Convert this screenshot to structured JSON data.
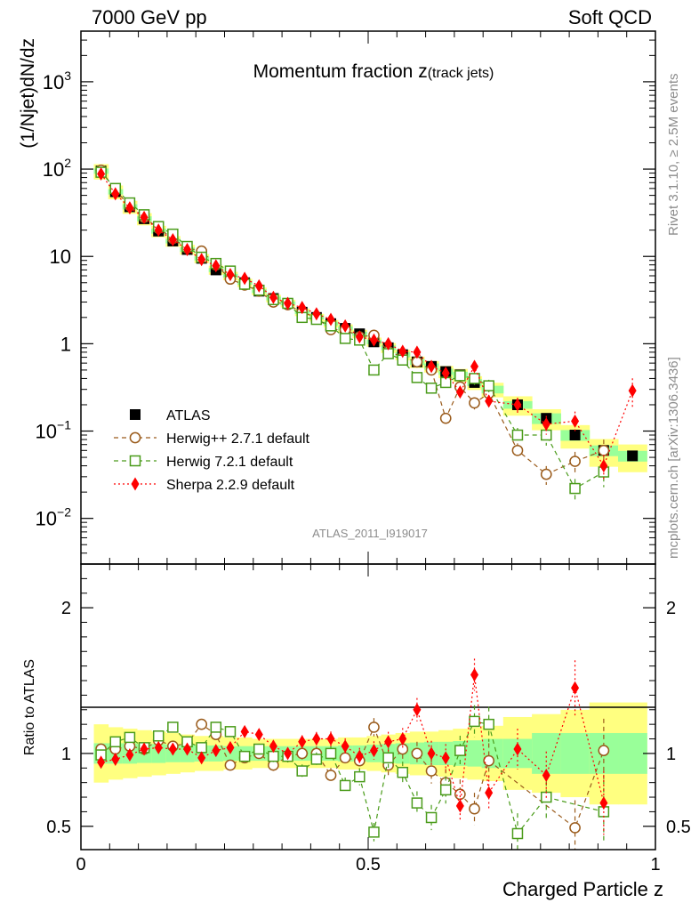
{
  "header": {
    "left": "7000 GeV pp",
    "right": "Soft QCD"
  },
  "side_labels": {
    "rivet": "Rivet 3.1.10, ≥ 2.5M events",
    "mcplots": "mcplots.cern.ch [arXiv:1306.3436]"
  },
  "analysis_id": "ATLAS_2011_I919017",
  "chart_data": [
    {
      "panel": "main",
      "type": "scatter",
      "title": "Momentum fraction z",
      "title_sub": "(track jets)",
      "ylabel": "(1/Njet)dN/dz",
      "ylog": true,
      "xlim": [
        0,
        1
      ],
      "ylim": [
        0.003,
        3800
      ],
      "yticks": [
        {
          "v": 0.01,
          "m": "10",
          "e": "−2"
        },
        {
          "v": 0.1,
          "m": "10",
          "e": "−1"
        },
        {
          "v": 1,
          "m": "1",
          "e": ""
        },
        {
          "v": 10,
          "m": "10",
          "e": ""
        },
        {
          "v": 100,
          "m": "10",
          "e": "2"
        },
        {
          "v": 1000,
          "m": "10",
          "e": "3"
        }
      ],
      "legend": [
        "ATLAS",
        "Herwig++ 2.7.1 default",
        "Herwig 7.2.1 default",
        "Sherpa 2.2.9 default"
      ],
      "legend_position": "bottom-left",
      "x": [
        0.035,
        0.06,
        0.085,
        0.11,
        0.135,
        0.16,
        0.185,
        0.21,
        0.235,
        0.26,
        0.285,
        0.31,
        0.335,
        0.36,
        0.385,
        0.41,
        0.435,
        0.46,
        0.485,
        0.51,
        0.535,
        0.56,
        0.585,
        0.61,
        0.635,
        0.66,
        0.685,
        0.71,
        0.76,
        0.81,
        0.86,
        0.91,
        0.96
      ],
      "series": [
        {
          "name": "ATLAS",
          "color": "#000000",
          "values": [
            95,
            55,
            37,
            27,
            19.5,
            15,
            12,
            9.5,
            7,
            6,
            5,
            4,
            3.3,
            2.9,
            2.3,
            2.0,
            1.7,
            1.5,
            1.3,
            1.05,
            0.9,
            0.75,
            0.62,
            0.55,
            0.48,
            0.44,
            0.36,
            0.3,
            0.2,
            0.14,
            0.09,
            0.06,
            0.052
          ]
        },
        {
          "name": "Herwig++ 2.7.1 default",
          "color": "#9a5b1b",
          "values": [
            97,
            57,
            38,
            28,
            21,
            16,
            12.5,
            11.5,
            8,
            5.5,
            4.7,
            4.0,
            3.0,
            2.8,
            2.3,
            2.0,
            1.45,
            1.45,
            1.2,
            1.25,
            0.82,
            0.7,
            0.62,
            0.5,
            0.14,
            0.32,
            0.21,
            0.27,
            0.06,
            0.032,
            0.045,
            0.06,
            null
          ]
        },
        {
          "name": "Herwig 7.2.1 default",
          "color": "#4a9b1a",
          "values": [
            92,
            60,
            41,
            30,
            22,
            18,
            13,
            9.8,
            8.3,
            6.8,
            4.8,
            4.1,
            3.2,
            2.9,
            2.0,
            1.9,
            1.6,
            1.15,
            1.1,
            0.5,
            0.77,
            0.65,
            0.41,
            0.31,
            0.36,
            0.43,
            0.4,
            0.33,
            0.09,
            0.09,
            0.022,
            0.034,
            null
          ]
        },
        {
          "name": "Sherpa 2.2.9 default",
          "color": "#ff0000",
          "values": [
            88,
            52,
            36,
            28,
            20,
            15.5,
            12,
            9.2,
            7.8,
            6.2,
            5.6,
            4.6,
            3.4,
            2.9,
            2.6,
            2.2,
            1.9,
            1.6,
            1.2,
            1.1,
            1.0,
            0.82,
            0.8,
            0.55,
            0.46,
            0.28,
            0.55,
            0.22,
            0.2,
            0.12,
            0.13,
            0.04,
            0.29
          ]
        }
      ]
    },
    {
      "panel": "ratio",
      "type": "scatter",
      "xlabel": "Charged Particle z",
      "ylabel": "Ratio to ATLAS",
      "xlim": [
        0,
        1
      ],
      "ylim": [
        0.34,
        2.3
      ],
      "xticks": [
        0,
        0.5,
        1
      ],
      "yticks": [
        0.5,
        1,
        2
      ],
      "band_inner": [
        0.07,
        0.07,
        0.07,
        0.065,
        0.065,
        0.06,
        0.06,
        0.055,
        0.055,
        0.05,
        0.05,
        0.05,
        0.05,
        0.05,
        0.05,
        0.05,
        0.05,
        0.055,
        0.055,
        0.06,
        0.065,
        0.07,
        0.075,
        0.08,
        0.08,
        0.085,
        0.09,
        0.1,
        0.1,
        0.14,
        0.14,
        0.14,
        0.14
      ],
      "band_outer": [
        0.2,
        0.18,
        0.17,
        0.16,
        0.15,
        0.14,
        0.13,
        0.12,
        0.12,
        0.11,
        0.11,
        0.1,
        0.1,
        0.1,
        0.1,
        0.1,
        0.1,
        0.11,
        0.11,
        0.12,
        0.13,
        0.14,
        0.15,
        0.15,
        0.16,
        0.17,
        0.18,
        0.19,
        0.25,
        0.27,
        0.3,
        0.35,
        0.35
      ],
      "series": [
        {
          "name": "Herwig++ 2.7.1 default",
          "values": [
            1.03,
            1.03,
            1.05,
            1.03,
            1.09,
            1.05,
            1.07,
            1.2,
            1.13,
            0.92,
            0.97,
            1.0,
            0.92,
            0.98,
            1.0,
            1.0,
            0.85,
            0.97,
            0.95,
            1.18,
            0.92,
            1.03,
            1.0,
            0.88,
            0.8,
            0.72,
            0.62,
            0.95,
            null,
            null,
            0.49,
            1.02,
            null
          ]
        },
        {
          "name": "Herwig 7.2.1 default",
          "values": [
            0.99,
            1.08,
            1.11,
            1.04,
            1.12,
            1.18,
            1.08,
            1.04,
            1.18,
            1.15,
            0.98,
            1.03,
            0.98,
            0.98,
            0.88,
            0.96,
            1.0,
            0.78,
            0.84,
            0.46,
            0.97,
            0.87,
            0.66,
            0.56,
            0.75,
            1.02,
            1.22,
            1.2,
            0.45,
            0.7,
            null,
            0.6,
            null
          ]
        },
        {
          "name": "Sherpa 2.2.9 default",
          "values": [
            0.94,
            0.96,
            0.99,
            1.03,
            1.04,
            1.03,
            1.03,
            0.97,
            1.02,
            1.04,
            1.15,
            1.13,
            1.05,
            1.0,
            1.08,
            1.1,
            1.1,
            1.05,
            0.98,
            1.02,
            1.08,
            1.1,
            1.3,
            1.0,
            0.97,
            0.64,
            1.54,
            0.73,
            1.03,
            0.85,
            1.45,
            0.66,
            null
          ]
        }
      ]
    }
  ]
}
